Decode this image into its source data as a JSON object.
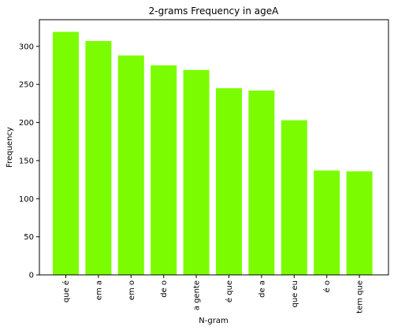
{
  "chart_data": {
    "type": "bar",
    "title": "2-grams Frequency in ageA",
    "xlabel": "N-gram",
    "ylabel": "Frequency",
    "categories": [
      "que é",
      "em a",
      "em o",
      "de o",
      "a gente",
      "é que",
      "de a",
      "que eu",
      "é o",
      "tem que"
    ],
    "values": [
      319,
      307,
      288,
      275,
      269,
      245,
      242,
      203,
      137,
      136
    ],
    "ylim": [
      0,
      335
    ],
    "yticks": [
      0,
      50,
      100,
      150,
      200,
      250,
      300
    ],
    "bar_color": "#7cfc00",
    "grid": false
  }
}
